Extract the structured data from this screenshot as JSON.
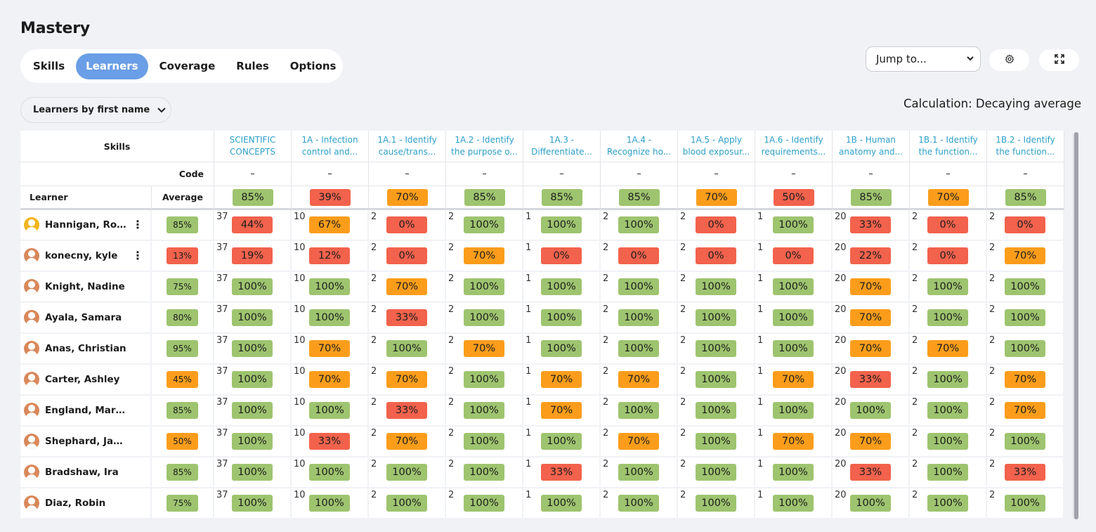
{
  "page_title": "Mastery",
  "tabs": [
    {
      "label": "Skills",
      "active": false
    },
    {
      "label": "Learners",
      "active": true
    },
    {
      "label": "Coverage",
      "active": false
    },
    {
      "label": "Rules",
      "active": false
    },
    {
      "label": "Options",
      "active": false
    }
  ],
  "jump_to": {
    "value": "Jump to..."
  },
  "order_by": {
    "label": "Learners by first name"
  },
  "calculation": "Calculation: Decaying average",
  "grid": {
    "skills_header": "Skills",
    "code_label": "Code",
    "learner_header": "Learner",
    "average_header": "Average",
    "skills": [
      {
        "line1": "SCIENTIFIC",
        "line2": "CONCEPTS",
        "code": "–",
        "avg": "85%",
        "avg_status": "g"
      },
      {
        "line1": "1A - Infection",
        "line2": "control and...",
        "code": "–",
        "avg": "39%",
        "avg_status": "r"
      },
      {
        "line1": "1A.1 - Identify",
        "line2": "cause/trans...",
        "code": "–",
        "avg": "70%",
        "avg_status": "o"
      },
      {
        "line1": "1A.2 - Identify",
        "line2": "the purpose o...",
        "code": "–",
        "avg": "85%",
        "avg_status": "g"
      },
      {
        "line1": "1A.3 -",
        "line2": "Differentiate...",
        "code": "–",
        "avg": "85%",
        "avg_status": "g"
      },
      {
        "line1": "1A.4 -",
        "line2": "Recognize ho...",
        "code": "–",
        "avg": "85%",
        "avg_status": "g"
      },
      {
        "line1": "1A.5 - Apply",
        "line2": "blood exposur...",
        "code": "–",
        "avg": "70%",
        "avg_status": "o"
      },
      {
        "line1": "1A.6 - Identify",
        "line2": "requirements...",
        "code": "–",
        "avg": "50%",
        "avg_status": "r"
      },
      {
        "line1": "1B - Human",
        "line2": "anatomy and...",
        "code": "–",
        "avg": "85%",
        "avg_status": "g"
      },
      {
        "line1": "1B.1 - Identify",
        "line2": "the function...",
        "code": "–",
        "avg": "70%",
        "avg_status": "o"
      },
      {
        "line1": "1B.2 - Identify",
        "line2": "the function...",
        "code": "–",
        "avg": "85%",
        "avg_status": "g"
      }
    ],
    "counts": [
      "37",
      "10",
      "2",
      "2",
      "1",
      "2",
      "2",
      "1",
      "20",
      "2",
      "2",
      "2"
    ],
    "learners": [
      {
        "name": "Hannigan, Rona...",
        "avatar": "alt",
        "menu": true,
        "avg": "85%",
        "avg_status": "g",
        "cells": [
          [
            "44%",
            "r"
          ],
          [
            "67%",
            "o"
          ],
          [
            "0%",
            "r"
          ],
          [
            "100%",
            "g"
          ],
          [
            "100%",
            "g"
          ],
          [
            "100%",
            "g"
          ],
          [
            "0%",
            "r"
          ],
          [
            "100%",
            "g"
          ],
          [
            "33%",
            "r"
          ],
          [
            "0%",
            "r"
          ],
          [
            "0%",
            "r"
          ]
        ],
        "extra": "2"
      },
      {
        "name": "konecny, kyle",
        "avatar": "",
        "menu": true,
        "avg": "13%",
        "avg_status": "r",
        "cells": [
          [
            "19%",
            "r"
          ],
          [
            "12%",
            "r"
          ],
          [
            "0%",
            "r"
          ],
          [
            "70%",
            "o"
          ],
          [
            "0%",
            "r"
          ],
          [
            "0%",
            "r"
          ],
          [
            "0%",
            "r"
          ],
          [
            "0%",
            "r"
          ],
          [
            "22%",
            "r"
          ],
          [
            "0%",
            "r"
          ],
          [
            "70%",
            "o"
          ]
        ],
        "extra": "2"
      },
      {
        "name": "Knight, Nadine",
        "avatar": "",
        "menu": false,
        "avg": "75%",
        "avg_status": "g",
        "cells": [
          [
            "100%",
            "g"
          ],
          [
            "100%",
            "g"
          ],
          [
            "70%",
            "o"
          ],
          [
            "100%",
            "g"
          ],
          [
            "100%",
            "g"
          ],
          [
            "100%",
            "g"
          ],
          [
            "100%",
            "g"
          ],
          [
            "100%",
            "g"
          ],
          [
            "70%",
            "o"
          ],
          [
            "100%",
            "g"
          ],
          [
            "100%",
            "g"
          ]
        ],
        "extra": ""
      },
      {
        "name": "Ayala, Samara",
        "avatar": "",
        "menu": false,
        "avg": "80%",
        "avg_status": "g",
        "cells": [
          [
            "100%",
            "g"
          ],
          [
            "100%",
            "g"
          ],
          [
            "33%",
            "r"
          ],
          [
            "100%",
            "g"
          ],
          [
            "100%",
            "g"
          ],
          [
            "100%",
            "g"
          ],
          [
            "100%",
            "g"
          ],
          [
            "100%",
            "g"
          ],
          [
            "70%",
            "o"
          ],
          [
            "100%",
            "g"
          ],
          [
            "100%",
            "g"
          ]
        ],
        "extra": ""
      },
      {
        "name": "Anas, Christian",
        "avatar": "",
        "menu": false,
        "avg": "95%",
        "avg_status": "g",
        "cells": [
          [
            "100%",
            "g"
          ],
          [
            "70%",
            "o"
          ],
          [
            "100%",
            "g"
          ],
          [
            "70%",
            "o"
          ],
          [
            "100%",
            "g"
          ],
          [
            "100%",
            "g"
          ],
          [
            "100%",
            "g"
          ],
          [
            "100%",
            "g"
          ],
          [
            "70%",
            "o"
          ],
          [
            "70%",
            "o"
          ],
          [
            "100%",
            "g"
          ]
        ],
        "extra": ""
      },
      {
        "name": "Carter, Ashley",
        "avatar": "",
        "menu": false,
        "avg": "45%",
        "avg_status": "o",
        "cells": [
          [
            "100%",
            "g"
          ],
          [
            "70%",
            "o"
          ],
          [
            "70%",
            "o"
          ],
          [
            "100%",
            "g"
          ],
          [
            "70%",
            "o"
          ],
          [
            "70%",
            "o"
          ],
          [
            "100%",
            "g"
          ],
          [
            "70%",
            "o"
          ],
          [
            "33%",
            "r"
          ],
          [
            "100%",
            "g"
          ],
          [
            "70%",
            "o"
          ]
        ],
        "extra": ""
      },
      {
        "name": "England, Mariam",
        "avatar": "",
        "menu": false,
        "avg": "85%",
        "avg_status": "g",
        "cells": [
          [
            "100%",
            "g"
          ],
          [
            "100%",
            "g"
          ],
          [
            "33%",
            "r"
          ],
          [
            "100%",
            "g"
          ],
          [
            "70%",
            "o"
          ],
          [
            "100%",
            "g"
          ],
          [
            "100%",
            "g"
          ],
          [
            "100%",
            "g"
          ],
          [
            "100%",
            "g"
          ],
          [
            "100%",
            "g"
          ],
          [
            "70%",
            "o"
          ]
        ],
        "extra": ""
      },
      {
        "name": "Shephard, Jamal",
        "avatar": "",
        "menu": false,
        "avg": "50%",
        "avg_status": "o",
        "cells": [
          [
            "100%",
            "g"
          ],
          [
            "33%",
            "r"
          ],
          [
            "70%",
            "o"
          ],
          [
            "100%",
            "g"
          ],
          [
            "100%",
            "g"
          ],
          [
            "70%",
            "o"
          ],
          [
            "100%",
            "g"
          ],
          [
            "70%",
            "o"
          ],
          [
            "70%",
            "o"
          ],
          [
            "100%",
            "g"
          ],
          [
            "100%",
            "g"
          ]
        ],
        "extra": ""
      },
      {
        "name": "Bradshaw, Ira",
        "avatar": "",
        "menu": false,
        "avg": "85%",
        "avg_status": "g",
        "cells": [
          [
            "100%",
            "g"
          ],
          [
            "100%",
            "g"
          ],
          [
            "100%",
            "g"
          ],
          [
            "100%",
            "g"
          ],
          [
            "33%",
            "r"
          ],
          [
            "100%",
            "g"
          ],
          [
            "100%",
            "g"
          ],
          [
            "100%",
            "g"
          ],
          [
            "33%",
            "r"
          ],
          [
            "100%",
            "g"
          ],
          [
            "33%",
            "r"
          ]
        ],
        "extra": ""
      },
      {
        "name": "Diaz, Robin",
        "avatar": "",
        "menu": false,
        "avg": "75%",
        "avg_status": "g",
        "cells": [
          [
            "100%",
            "g"
          ],
          [
            "100%",
            "g"
          ],
          [
            "100%",
            "g"
          ],
          [
            "100%",
            "g"
          ],
          [
            "100%",
            "g"
          ],
          [
            "100%",
            "g"
          ],
          [
            "100%",
            "g"
          ],
          [
            "100%",
            "g"
          ],
          [
            "100%",
            "g"
          ],
          [
            "100%",
            "g"
          ],
          [
            "100%",
            "g"
          ]
        ],
        "extra": ""
      }
    ]
  },
  "colors": {
    "green": "#9ec46f",
    "orange": "#fb9d1b",
    "red": "#f2624c",
    "accent": "#6a9ee6",
    "skill_link": "#2c9fc8"
  }
}
